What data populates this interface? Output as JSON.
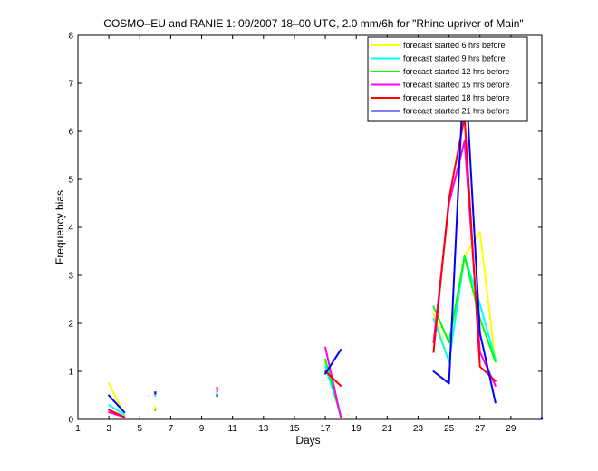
{
  "chart_data": {
    "type": "line",
    "title": "COSMO–EU and RANIE 1: 09/2007 18–00 UTC, 2.0 mm/6h for \"Rhine upriver of Main\"",
    "xlabel": "Days",
    "ylabel": "Frequency bias",
    "xlim": [
      1,
      31
    ],
    "ylim": [
      0,
      8
    ],
    "xticks": [
      1,
      3,
      5,
      7,
      9,
      11,
      13,
      15,
      17,
      19,
      21,
      23,
      25,
      27,
      29
    ],
    "yticks": [
      0,
      1,
      2,
      3,
      4,
      5,
      6,
      7,
      8
    ],
    "legend_position": "top-right",
    "series": [
      {
        "name": "forecast started 6 hrs before",
        "color": "#ffff00",
        "segments": [
          [
            [
              3,
              0.75
            ],
            [
              4,
              0.1
            ]
          ],
          [
            [
              17,
              1.2
            ],
            [
              18,
              0.1
            ]
          ],
          [
            [
              24,
              2.2
            ],
            [
              25,
              1.2
            ],
            [
              26,
              3.4
            ],
            [
              27,
              3.9
            ],
            [
              28,
              1.2
            ]
          ]
        ],
        "points": [
          [
            6,
            0.25
          ],
          [
            10,
            0.55
          ]
        ]
      },
      {
        "name": "forecast started 9 hrs before",
        "color": "#00ffff",
        "segments": [
          [
            [
              3,
              0.3
            ],
            [
              4,
              0.1
            ]
          ],
          [
            [
              17,
              1.1
            ],
            [
              18,
              0.1
            ]
          ],
          [
            [
              24,
              2.1
            ],
            [
              25,
              1.2
            ],
            [
              26,
              3.4
            ],
            [
              27,
              2.4
            ],
            [
              28,
              1.25
            ]
          ]
        ],
        "points": [
          [
            6,
            0.5
          ],
          [
            10,
            0.55
          ]
        ]
      },
      {
        "name": "forecast started 12 hrs before",
        "color": "#00ff00",
        "segments": [
          [
            [
              3,
              0.2
            ],
            [
              4,
              0.05
            ]
          ],
          [
            [
              17,
              1.25
            ],
            [
              18,
              0.05
            ]
          ],
          [
            [
              24,
              2.35
            ],
            [
              25,
              1.6
            ],
            [
              26,
              3.4
            ],
            [
              27,
              2.1
            ],
            [
              28,
              1.2
            ]
          ]
        ],
        "points": [
          [
            6,
            0.2
          ],
          [
            10,
            0.5
          ]
        ]
      },
      {
        "name": "forecast started 15 hrs before",
        "color": "#ff00ff",
        "segments": [
          [
            [
              3,
              0.15
            ],
            [
              4,
              0.05
            ]
          ],
          [
            [
              17,
              1.5
            ],
            [
              18,
              0.05
            ]
          ],
          [
            [
              24,
              1.6
            ],
            [
              25,
              4.5
            ],
            [
              26,
              5.8
            ],
            [
              27,
              1.4
            ],
            [
              28,
              0.7
            ]
          ]
        ],
        "points": [
          [
            6,
            0.55
          ],
          [
            10,
            0.6
          ]
        ]
      },
      {
        "name": "forecast started 18 hrs before",
        "color": "#ff0000",
        "segments": [
          [
            [
              3,
              0.2
            ],
            [
              4,
              0.05
            ]
          ],
          [
            [
              17,
              1.0
            ],
            [
              18,
              0.7
            ]
          ],
          [
            [
              24,
              1.4
            ],
            [
              25,
              4.6
            ],
            [
              26,
              6.3
            ],
            [
              27,
              1.1
            ],
            [
              28,
              0.8
            ]
          ]
        ],
        "points": [
          [
            6,
            0.55
          ],
          [
            10,
            0.65
          ]
        ]
      },
      {
        "name": "forecast started 21 hrs before",
        "color": "#0000ff",
        "segments": [
          [
            [
              3,
              0.5
            ],
            [
              4,
              0.15
            ]
          ],
          [
            [
              17,
              0.95
            ],
            [
              18,
              1.45
            ]
          ],
          [
            [
              24,
              1.0
            ],
            [
              25,
              0.75
            ],
            [
              26,
              7.55
            ],
            [
              27,
              1.8
            ],
            [
              28,
              0.35
            ]
          ]
        ],
        "points": [
          [
            6,
            0.55
          ],
          [
            10,
            0.5
          ],
          [
            31,
            0.02
          ]
        ]
      }
    ]
  }
}
